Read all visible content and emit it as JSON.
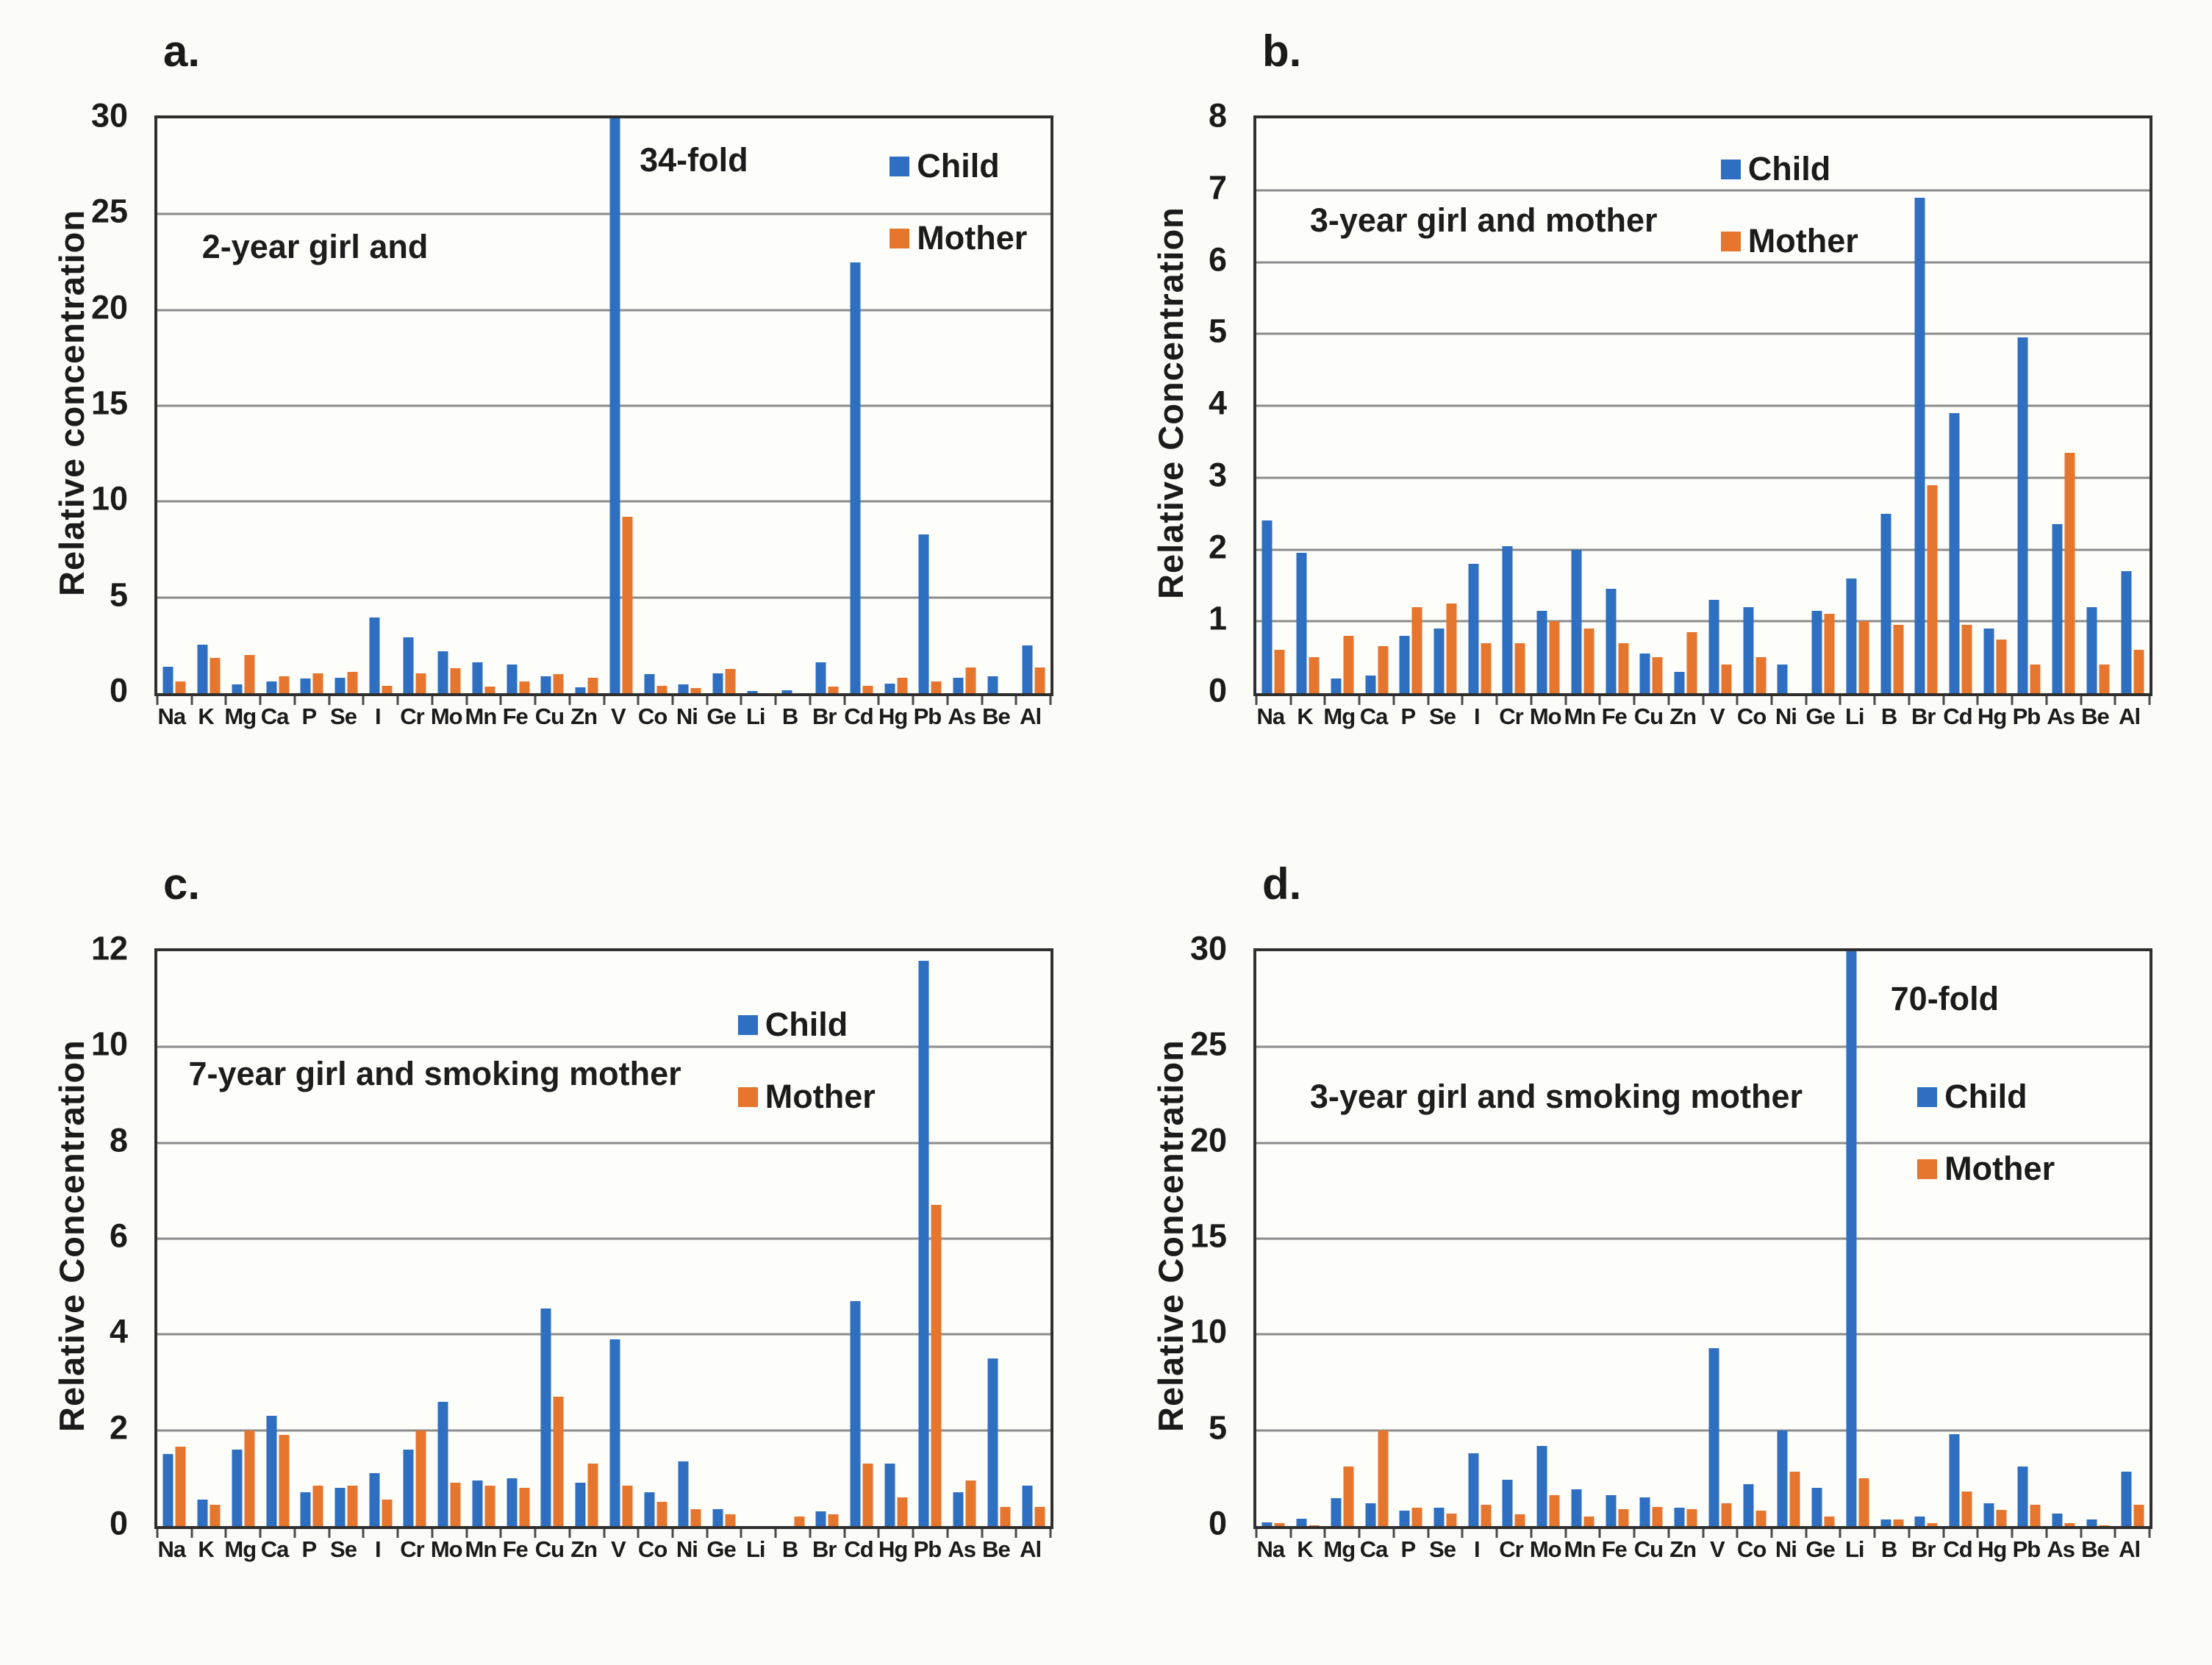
{
  "colors": {
    "child": "#2e6fc1",
    "mother": "#e6752e",
    "gridline": "#8b8b8b",
    "plot_border": "#2f2f2f",
    "text": "#1b1b1b"
  },
  "chart_data": [
    {
      "id": "a",
      "type": "bar",
      "panel_label": "a.",
      "title": "2-year girl and",
      "annotation": "34-fold",
      "ylabel": "Relative concentration",
      "ylim": [
        0,
        30
      ],
      "ytick_step": 5,
      "grid": true,
      "legend_position": "top-right-inside",
      "categories": [
        "Na",
        "K",
        "Mg",
        "Ca",
        "P",
        "Se",
        "I",
        "Cr",
        "Mo",
        "Mn",
        "Fe",
        "Cu",
        "Zn",
        "V",
        "Co",
        "Ni",
        "Ge",
        "Li",
        "B",
        "Br",
        "Cd",
        "Hg",
        "Pb",
        "As",
        "Be",
        "Al"
      ],
      "series": [
        {
          "name": "Child",
          "color": "#2e6fc1",
          "values": [
            1.4,
            2.55,
            0.45,
            0.6,
            0.75,
            0.8,
            3.95,
            2.9,
            2.2,
            1.6,
            1.5,
            0.9,
            0.3,
            34,
            1.0,
            0.45,
            1.05,
            0.1,
            0.15,
            1.6,
            22.5,
            0.5,
            8.3,
            0.8,
            0.9,
            2.5
          ]
        },
        {
          "name": "Mother",
          "color": "#e6752e",
          "values": [
            0.6,
            1.85,
            2.0,
            0.9,
            1.05,
            1.1,
            0.4,
            1.05,
            1.3,
            0.35,
            0.6,
            1.0,
            0.8,
            9.2,
            0.4,
            0.25,
            1.25,
            0,
            0,
            0.35,
            0.4,
            0.8,
            0.6,
            1.35,
            0,
            1.35
          ]
        }
      ]
    },
    {
      "id": "b",
      "type": "bar",
      "panel_label": "b.",
      "title": "3-year girl and mother",
      "ylabel": "Relative Concentration",
      "ylim": [
        0,
        8
      ],
      "ytick_step": 1,
      "grid": true,
      "legend_position": "top-center-inside",
      "categories": [
        "Na",
        "K",
        "Mg",
        "Ca",
        "P",
        "Se",
        "I",
        "Cr",
        "Mo",
        "Mn",
        "Fe",
        "Cu",
        "Zn",
        "V",
        "Co",
        "Ni",
        "Ge",
        "Li",
        "B",
        "Br",
        "Cd",
        "Hg",
        "Pb",
        "As",
        "Be",
        "Al"
      ],
      "series": [
        {
          "name": "Child",
          "color": "#2e6fc1",
          "values": [
            2.4,
            1.95,
            0.2,
            0.25,
            0.8,
            0.9,
            1.8,
            2.05,
            1.15,
            2.0,
            1.45,
            0.55,
            0.3,
            1.3,
            1.2,
            0.4,
            1.15,
            1.6,
            2.5,
            6.9,
            3.9,
            0.9,
            4.95,
            2.35,
            1.2,
            1.7
          ]
        },
        {
          "name": "Mother",
          "color": "#e6752e",
          "values": [
            0.6,
            0.5,
            0.8,
            0.65,
            1.2,
            1.25,
            0.7,
            0.7,
            1.0,
            0.9,
            0.7,
            0.5,
            0.85,
            0.4,
            0.5,
            0,
            1.1,
            1.0,
            0.95,
            2.9,
            0.95,
            0.75,
            0.4,
            3.35,
            0.4,
            0.6
          ]
        }
      ]
    },
    {
      "id": "c",
      "type": "bar",
      "panel_label": "c.",
      "title": "7-year girl and smoking mother",
      "ylabel": "Relative Concentration",
      "ylim": [
        0,
        12
      ],
      "ytick_step": 2,
      "grid": true,
      "legend_position": "top-right-inside",
      "categories": [
        "Na",
        "K",
        "Mg",
        "Ca",
        "P",
        "Se",
        "I",
        "Cr",
        "Mo",
        "Mn",
        "Fe",
        "Cu",
        "Zn",
        "V",
        "Co",
        "Ni",
        "Ge",
        "Li",
        "B",
        "Br",
        "Cd",
        "Hg",
        "Pb",
        "As",
        "Be",
        "Al"
      ],
      "series": [
        {
          "name": "Child",
          "color": "#2e6fc1",
          "values": [
            1.5,
            0.55,
            1.6,
            2.3,
            0.7,
            0.8,
            1.1,
            1.6,
            2.6,
            0.95,
            1.0,
            4.55,
            0.9,
            3.9,
            0.7,
            1.35,
            0.35,
            0,
            0,
            0.3,
            4.7,
            1.3,
            11.8,
            0.7,
            3.5,
            0.85
          ]
        },
        {
          "name": "Mother",
          "color": "#e6752e",
          "values": [
            1.65,
            0.45,
            2.0,
            1.9,
            0.85,
            0.85,
            0.55,
            2.0,
            0.9,
            0.85,
            0.8,
            2.7,
            1.3,
            0.85,
            0.5,
            0.35,
            0.25,
            0,
            0.2,
            0.25,
            1.3,
            0.6,
            6.7,
            0.95,
            0.4,
            0.4
          ]
        }
      ]
    },
    {
      "id": "d",
      "type": "bar",
      "panel_label": "d.",
      "title": "3-year girl and smoking mother",
      "annotation": "70-fold",
      "ylabel": "Relative Concentration",
      "ylim": [
        0,
        30
      ],
      "ytick_step": 5,
      "grid": true,
      "legend_position": "right-inside",
      "categories": [
        "Na",
        "K",
        "Mg",
        "Ca",
        "P",
        "Se",
        "I",
        "Cr",
        "Mo",
        "Mn",
        "Fe",
        "Cu",
        "Zn",
        "V",
        "Co",
        "Ni",
        "Ge",
        "Li",
        "B",
        "Br",
        "Cd",
        "Hg",
        "Pb",
        "As",
        "Be",
        "Al"
      ],
      "series": [
        {
          "name": "Child",
          "color": "#2e6fc1",
          "values": [
            0.2,
            0.4,
            1.45,
            1.2,
            0.8,
            0.95,
            3.8,
            2.4,
            4.2,
            1.9,
            1.6,
            1.5,
            0.95,
            9.3,
            2.2,
            5.0,
            2.0,
            70,
            0.35,
            0.5,
            4.8,
            1.2,
            3.1,
            0.65,
            0.35,
            2.85
          ]
        },
        {
          "name": "Mother",
          "color": "#e6752e",
          "values": [
            0.15,
            0.05,
            3.1,
            5.0,
            0.95,
            0.65,
            1.1,
            0.6,
            1.6,
            0.5,
            0.9,
            1.0,
            0.9,
            1.2,
            0.8,
            2.85,
            0.5,
            2.5,
            0.35,
            0.15,
            1.8,
            0.85,
            1.1,
            0.15,
            0.05,
            1.1
          ]
        }
      ]
    }
  ]
}
